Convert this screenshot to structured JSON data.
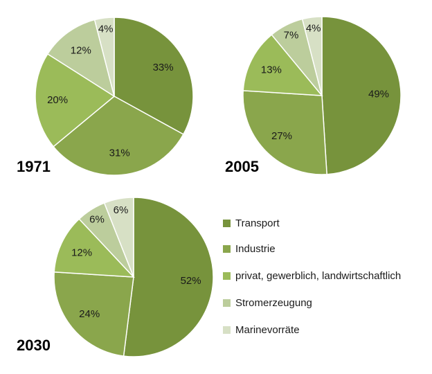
{
  "chart_data": [
    {
      "type": "pie",
      "title": "1971",
      "categories": [
        "Transport",
        "Industrie",
        "privat, gewerblich, landwirtschaftlich",
        "Stromerzeugung",
        "Marinevorräte"
      ],
      "values": [
        33,
        31,
        20,
        12,
        4
      ],
      "labels": [
        "33%",
        "31%",
        "20%",
        "12%",
        "4%"
      ]
    },
    {
      "type": "pie",
      "title": "2005",
      "categories": [
        "Transport",
        "Industrie",
        "privat, gewerblich, landwirtschaftlich",
        "Stromerzeugung",
        "Marinevorräte"
      ],
      "values": [
        49,
        27,
        13,
        7,
        4
      ],
      "labels": [
        "49%",
        "27%",
        "13%",
        "7%",
        "4%"
      ]
    },
    {
      "type": "pie",
      "title": "2030",
      "categories": [
        "Transport",
        "Industrie",
        "privat, gewerblich, landwirtschaftlich",
        "Stromerzeugung",
        "Marinevorräte"
      ],
      "values": [
        52,
        24,
        12,
        6,
        6
      ],
      "labels": [
        "52%",
        "24%",
        "12%",
        "6%",
        "6%"
      ]
    }
  ],
  "legend": {
    "position": "right-middle",
    "items": [
      {
        "label": "Transport",
        "color": "#77933c"
      },
      {
        "label": "Industrie",
        "color": "#8aa64c"
      },
      {
        "label": "privat, gewerblich, landwirtschaftlich",
        "color": "#9bbb59"
      },
      {
        "label": "Stromerzeugung",
        "color": "#bccd9c"
      },
      {
        "label": "Marinevorräte",
        "color": "#d7e0c5"
      }
    ]
  },
  "colors": {
    "segments": [
      "#77933c",
      "#8aa64c",
      "#9bbb59",
      "#bccd9c",
      "#d7e0c5"
    ],
    "separator": "#ffffff"
  }
}
